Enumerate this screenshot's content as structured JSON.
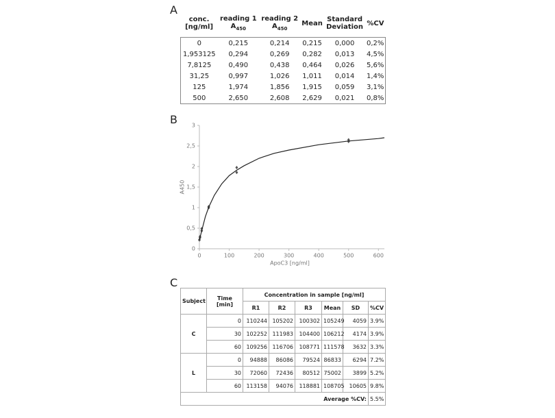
{
  "panel_a": {
    "label": "A",
    "headers": [
      {
        "lines": [
          "conc.",
          "[ng/ml]"
        ]
      },
      {
        "lines": [
          "reading 1"
        ],
        "symbol": "A",
        "sub": "450"
      },
      {
        "lines": [
          "reading 2"
        ],
        "symbol": "A",
        "sub": "450"
      },
      {
        "lines": [
          "Mean"
        ]
      },
      {
        "lines": [
          "Standard",
          "Deviation"
        ]
      },
      {
        "lines": [
          "%CV"
        ]
      }
    ],
    "rows": [
      [
        "0",
        "0,215",
        "0,214",
        "0,215",
        "0,000",
        "0,2%"
      ],
      [
        "1,953125",
        "0,294",
        "0,269",
        "0,282",
        "0,013",
        "4,5%"
      ],
      [
        "7,8125",
        "0,490",
        "0,438",
        "0,464",
        "0,026",
        "5,6%"
      ],
      [
        "31,25",
        "0,997",
        "1,026",
        "1,011",
        "0,014",
        "1,4%"
      ],
      [
        "125",
        "1,974",
        "1,856",
        "1,915",
        "0,059",
        "3,1%"
      ],
      [
        "500",
        "2,650",
        "2,608",
        "2,629",
        "0,021",
        "0,8%"
      ]
    ]
  },
  "chart_data": {
    "type": "scatter",
    "label": "B",
    "x_label": "ApoC3 [ng/ml]",
    "y_label": "A450",
    "xlim": [
      0,
      620
    ],
    "ylim": [
      0,
      3
    ],
    "xticks": [
      0,
      100,
      200,
      300,
      400,
      500,
      600
    ],
    "yticks": [
      0,
      {
        "value": 0.5,
        "label": "0,5"
      },
      1,
      {
        "value": 1.5,
        "label": "1,5"
      },
      2,
      {
        "value": 2.5,
        "label": "2,5"
      },
      3
    ],
    "series": [
      {
        "type": "scatter",
        "color": "#555555",
        "x": [
          0,
          0,
          1.953125,
          1.953125,
          7.8125,
          7.8125,
          31.25,
          31.25,
          125,
          125,
          500,
          500
        ],
        "values": [
          0.215,
          0.214,
          0.294,
          0.269,
          0.49,
          0.438,
          0.997,
          1.026,
          1.974,
          1.856,
          2.65,
          2.608
        ]
      },
      {
        "type": "line",
        "color": "#222222",
        "x": [
          0,
          10,
          20,
          31.25,
          50,
          75,
          100,
          125,
          150,
          200,
          250,
          300,
          400,
          500,
          600,
          620
        ],
        "values": [
          0.21,
          0.5,
          0.78,
          1.01,
          1.3,
          1.58,
          1.78,
          1.91,
          2.02,
          2.2,
          2.32,
          2.4,
          2.53,
          2.62,
          2.68,
          2.7
        ]
      }
    ]
  },
  "panel_c": {
    "label": "C",
    "header": {
      "subject": "Subject",
      "time": "Time [min]",
      "group": "Concentration in sample [ng/ml]",
      "columns": [
        "R1",
        "R2",
        "R3",
        "Mean",
        "SD",
        "%CV"
      ]
    },
    "groups": [
      {
        "subject": "C",
        "rows": [
          [
            "0",
            "110244",
            "105202",
            "100302",
            "105249",
            "4059",
            "3.9%"
          ],
          [
            "30",
            "102252",
            "111983",
            "104400",
            "106212",
            "4174",
            "3.9%"
          ],
          [
            "60",
            "109256",
            "116706",
            "108771",
            "111578",
            "3632",
            "3.3%"
          ]
        ]
      },
      {
        "subject": "L",
        "rows": [
          [
            "0",
            "94888",
            "86086",
            "79524",
            "86833",
            "6294",
            "7.2%"
          ],
          [
            "30",
            "72060",
            "72436",
            "80512",
            "75002",
            "3899",
            "5.2%"
          ],
          [
            "60",
            "113158",
            "94076",
            "118881",
            "108705",
            "10605",
            "9.8%"
          ]
        ]
      }
    ],
    "footer": {
      "label": "Average %CV:",
      "value": "5.5%"
    }
  }
}
